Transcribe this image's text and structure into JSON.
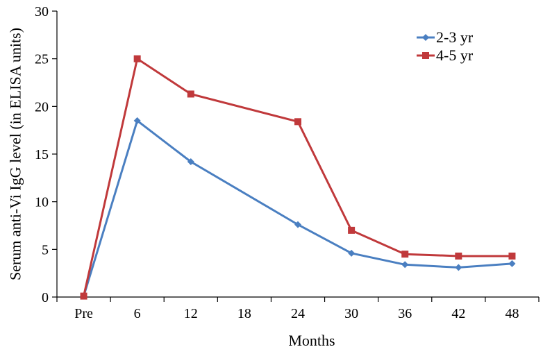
{
  "chart_data": {
    "type": "line",
    "title": "",
    "xlabel": "Months",
    "ylabel": "Serum anti-Vi IgG level (in ELISA units)",
    "categories": [
      "Pre",
      "6",
      "12",
      "18",
      "24",
      "30",
      "36",
      "42",
      "48"
    ],
    "ylim": [
      0,
      30
    ],
    "yticks": [
      0,
      5,
      10,
      15,
      20,
      25,
      30
    ],
    "grid": false,
    "legend_position": "top-right",
    "series": [
      {
        "name": "2-3 yr",
        "color": "#4a7fc1",
        "marker": "diamond",
        "points": [
          {
            "x": "Pre",
            "y": 0.1
          },
          {
            "x": "6",
            "y": 18.5
          },
          {
            "x": "12",
            "y": 14.2
          },
          {
            "x": "24",
            "y": 7.6
          },
          {
            "x": "30",
            "y": 4.6
          },
          {
            "x": "36",
            "y": 3.4
          },
          {
            "x": "42",
            "y": 3.1
          },
          {
            "x": "48",
            "y": 3.5
          }
        ]
      },
      {
        "name": "4-5 yr",
        "color": "#c0393b",
        "marker": "square",
        "points": [
          {
            "x": "Pre",
            "y": 0.1
          },
          {
            "x": "6",
            "y": 25.0
          },
          {
            "x": "12",
            "y": 21.3
          },
          {
            "x": "24",
            "y": 18.4
          },
          {
            "x": "30",
            "y": 7.0
          },
          {
            "x": "36",
            "y": 4.5
          },
          {
            "x": "42",
            "y": 4.3
          },
          {
            "x": "48",
            "y": 4.3
          }
        ]
      }
    ]
  }
}
